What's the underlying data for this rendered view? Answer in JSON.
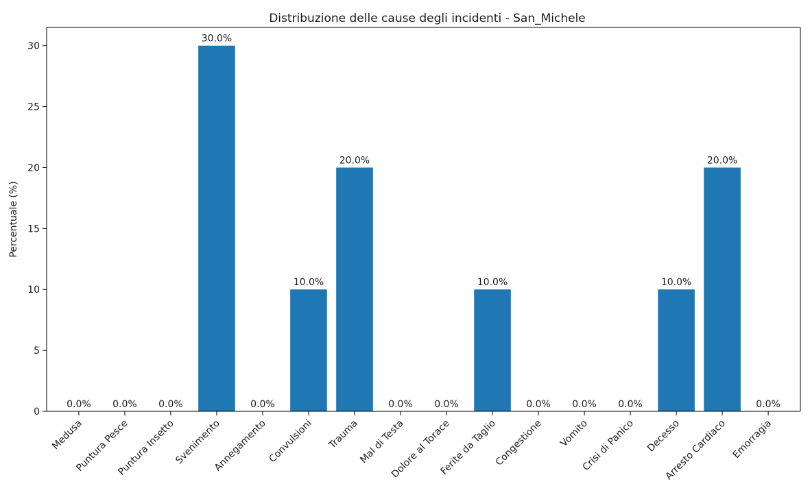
{
  "chart_data": {
    "type": "bar",
    "title": "Distribuzione delle cause degli incidenti - San_Michele",
    "xlabel": "",
    "ylabel": "Percentuale (%)",
    "ylim": [
      0,
      31.5
    ],
    "yticks": [
      0,
      5,
      10,
      15,
      20,
      25,
      30
    ],
    "grid": false,
    "legend": "none",
    "bar_color": "#1f77b4",
    "categories": [
      "Medusa",
      "Puntura Pesce",
      "Puntura Insetto",
      "Svenimento",
      "Annegamento",
      "Convulsioni",
      "Trauma",
      "Mal di Testa",
      "Dolore al Torace",
      "Ferite da Taglio",
      "Congestione",
      "Vomito",
      "Crisi di Panico",
      "Decesso",
      "Arresto Cardiaco",
      "Emorragia"
    ],
    "values": [
      0,
      0,
      0,
      30,
      0,
      10,
      20,
      0,
      0,
      10,
      0,
      0,
      0,
      10,
      20,
      0
    ],
    "data_labels": [
      "0.0%",
      "0.0%",
      "0.0%",
      "30.0%",
      "0.0%",
      "10.0%",
      "20.0%",
      "0.0%",
      "0.0%",
      "10.0%",
      "0.0%",
      "0.0%",
      "0.0%",
      "10.0%",
      "20.0%",
      "0.0%"
    ]
  }
}
